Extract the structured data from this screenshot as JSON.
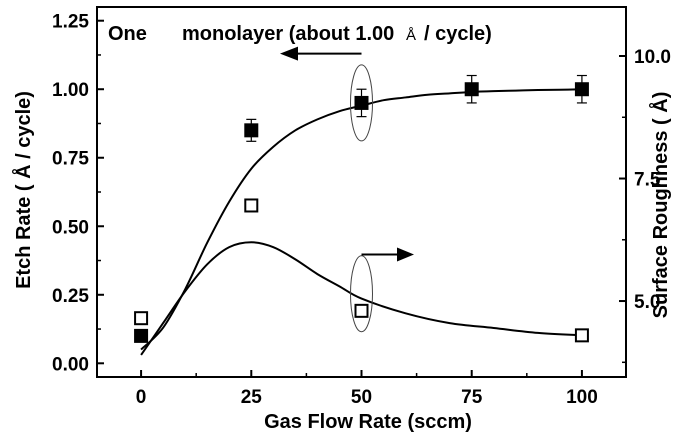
{
  "chart_data": {
    "type": "scatter",
    "x_label": "Gas Flow Rate (sccm)",
    "y_left_label": "Etch Rate ( Å / cycle)",
    "y_right_label": "Surface Roughness ( Å)",
    "annotation": {
      "prefix": "One",
      "main": "monolayer (about 1.00",
      "unit": "Å",
      "suffix": "/ cycle)"
    },
    "x_ticks": [
      "0",
      "25",
      "50",
      "75",
      "100"
    ],
    "y_left_ticks": [
      "0.00",
      "0.25",
      "0.50",
      "0.75",
      "1.00",
      "1.25"
    ],
    "y_right_ticks": [
      "5.0",
      "7.5",
      "10.0"
    ],
    "xlim": [
      -10,
      110
    ],
    "ylim_left": [
      -0.05,
      1.3
    ],
    "ylim_right": [
      3.45,
      11.0
    ],
    "series": [
      {
        "name": "Etch Rate",
        "axis": "left",
        "marker": "filled-square",
        "x": [
          0,
          25,
          50,
          75,
          100
        ],
        "y": [
          0.1,
          0.85,
          0.95,
          1.0,
          1.0
        ],
        "err": [
          0,
          0.04,
          0.05,
          0.05,
          0.05
        ],
        "fit_x": [
          0,
          5,
          10,
          15,
          20,
          25,
          30,
          35,
          40,
          45,
          50,
          55,
          60,
          65,
          70,
          75,
          80,
          85,
          90,
          95,
          100
        ],
        "fit_y": [
          0.05,
          0.13,
          0.27,
          0.44,
          0.59,
          0.71,
          0.79,
          0.85,
          0.89,
          0.92,
          0.94,
          0.96,
          0.97,
          0.98,
          0.985,
          0.99,
          0.993,
          0.995,
          0.997,
          0.998,
          1.0
        ]
      },
      {
        "name": "Surface Roughness",
        "axis": "right",
        "marker": "open-square",
        "x": [
          0,
          25,
          50,
          100
        ],
        "y": [
          4.65,
          6.95,
          4.8,
          4.3
        ],
        "fit_x": [
          0,
          5,
          10,
          15,
          20,
          25,
          30,
          35,
          40,
          45,
          50,
          60,
          70,
          80,
          90,
          100
        ],
        "fit_y": [
          3.9,
          4.55,
          5.2,
          5.75,
          6.1,
          6.2,
          6.1,
          5.85,
          5.55,
          5.3,
          5.05,
          4.75,
          4.55,
          4.45,
          4.35,
          4.3
        ]
      }
    ]
  }
}
